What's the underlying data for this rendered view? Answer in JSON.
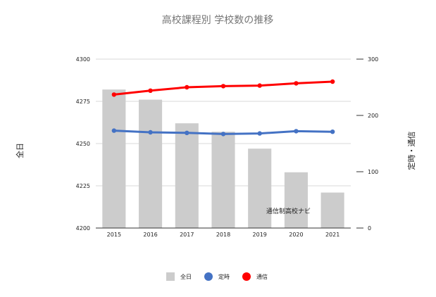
{
  "chart_data": {
    "type": "bar",
    "title": "高校課程別 学校数の推移",
    "categories": [
      "2015",
      "2016",
      "2017",
      "2018",
      "2019",
      "2020",
      "2021"
    ],
    "y_left": {
      "label": "全日",
      "range": [
        4200,
        4300
      ],
      "ticks": [
        "4200",
        "4225",
        "4250",
        "4275",
        "4300"
      ]
    },
    "y_right": {
      "label": "定時・通信",
      "range": [
        0,
        300
      ],
      "ticks": [
        "0",
        "100",
        "200",
        "300"
      ]
    },
    "series": [
      {
        "name": "全日",
        "type": "bar",
        "axis": "left",
        "color": "#cccccc",
        "values": [
          4282,
          4276,
          4262,
          4257,
          4247,
          4233,
          4221
        ]
      },
      {
        "name": "定時",
        "type": "line",
        "axis": "right",
        "color": "#4472c4",
        "values": [
          173,
          170,
          169,
          167,
          168,
          172,
          171
        ]
      },
      {
        "name": "通信",
        "type": "line",
        "axis": "right",
        "color": "#ff0000",
        "values": [
          237,
          244,
          250,
          252,
          253,
          257,
          260
        ]
      }
    ],
    "annotation": "通信制高校ナビ",
    "legend_position": "bottom",
    "grid": true
  }
}
